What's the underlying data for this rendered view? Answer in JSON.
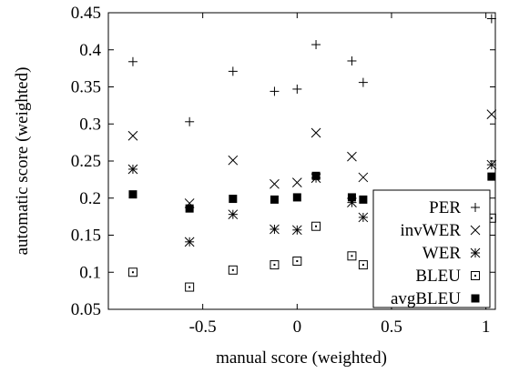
{
  "chart_data": {
    "type": "scatter",
    "title": "",
    "xlabel": "manual score (weighted)",
    "ylabel": "automatic score (weighted)",
    "xlim": [
      -1.0,
      1.05
    ],
    "ylim": [
      0.05,
      0.45
    ],
    "xticks": [
      -0.5,
      0,
      0.5,
      1
    ],
    "xtick_labels": [
      "-0.5",
      "0",
      "0.5",
      "1"
    ],
    "yticks": [
      0.05,
      0.1,
      0.15,
      0.2,
      0.25,
      0.3,
      0.35,
      0.4,
      0.45
    ],
    "ytick_labels": [
      "0.05",
      "0.1",
      "0.15",
      "0.2",
      "0.25",
      "0.3",
      "0.35",
      "0.4",
      "0.45"
    ],
    "grid": false,
    "legend_position": "bottom-right",
    "series": [
      {
        "name": "PER",
        "marker": "plus",
        "x": [
          -0.87,
          -0.57,
          -0.34,
          -0.12,
          0.0,
          0.1,
          0.29,
          0.35,
          1.03
        ],
        "y": [
          0.384,
          0.303,
          0.371,
          0.344,
          0.347,
          0.407,
          0.385,
          0.356,
          0.442
        ]
      },
      {
        "name": "invWER",
        "marker": "cross",
        "x": [
          -0.87,
          -0.57,
          -0.34,
          -0.12,
          0.0,
          0.1,
          0.29,
          0.35,
          1.03
        ],
        "y": [
          0.284,
          0.193,
          0.251,
          0.219,
          0.221,
          0.288,
          0.256,
          0.228,
          0.313
        ]
      },
      {
        "name": "WER",
        "marker": "asterisk",
        "x": [
          -0.87,
          -0.57,
          -0.34,
          -0.12,
          0.0,
          0.1,
          0.29,
          0.35,
          1.03
        ],
        "y": [
          0.239,
          0.141,
          0.178,
          0.158,
          0.157,
          0.227,
          0.194,
          0.174,
          0.245
        ]
      },
      {
        "name": "BLEU",
        "marker": "square-dot",
        "x": [
          -0.87,
          -0.57,
          -0.34,
          -0.12,
          0.0,
          0.1,
          0.29,
          0.35,
          1.03
        ],
        "y": [
          0.1,
          0.08,
          0.103,
          0.11,
          0.115,
          0.162,
          0.122,
          0.11,
          0.173
        ]
      },
      {
        "name": "avgBLEU",
        "marker": "filled-square",
        "x": [
          -0.87,
          -0.57,
          -0.34,
          -0.12,
          0.0,
          0.1,
          0.29,
          0.35,
          1.03
        ],
        "y": [
          0.205,
          0.186,
          0.199,
          0.198,
          0.201,
          0.23,
          0.201,
          0.198,
          0.229
        ]
      }
    ]
  }
}
